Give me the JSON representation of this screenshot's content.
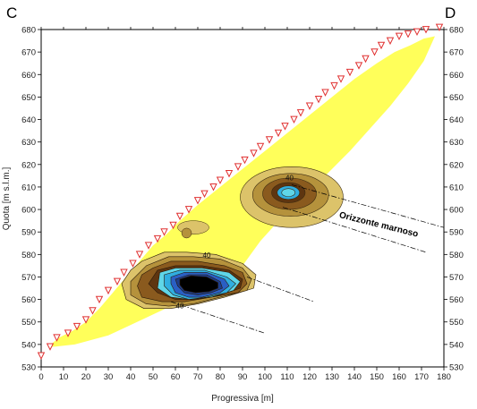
{
  "chart_data": {
    "type": "contour",
    "title": "",
    "xlabel": "Progressiva [m]",
    "ylabel": "Quota [m s.l.m.]",
    "xlim": [
      0,
      180
    ],
    "ylim": [
      530,
      680
    ],
    "x_ticks": [
      0,
      10,
      20,
      30,
      40,
      50,
      60,
      70,
      80,
      90,
      100,
      110,
      120,
      130,
      140,
      150,
      160,
      170,
      180
    ],
    "y_ticks": [
      530,
      540,
      550,
      560,
      570,
      580,
      590,
      600,
      610,
      620,
      630,
      640,
      650,
      660,
      670,
      680
    ],
    "section_labels": {
      "left": "C",
      "right": "D"
    },
    "contour_labels": [
      {
        "text": "40",
        "x": 111,
        "y": 613
      },
      {
        "text": "40",
        "x": 74,
        "y": 578.5
      },
      {
        "text": "40",
        "x": 62,
        "y": 556
      }
    ],
    "annotation": {
      "text": "Orizzonte marnoso",
      "x": 133,
      "y": 596.5
    },
    "electrode_positions": [
      [
        0,
        535
      ],
      [
        4,
        539
      ],
      [
        7,
        543
      ],
      [
        12,
        545
      ],
      [
        16,
        548
      ],
      [
        20,
        551
      ],
      [
        23,
        555
      ],
      [
        26,
        560
      ],
      [
        30,
        564
      ],
      [
        34,
        568
      ],
      [
        37,
        572
      ],
      [
        41,
        576
      ],
      [
        44,
        580
      ],
      [
        48,
        584
      ],
      [
        52,
        587
      ],
      [
        55,
        590
      ],
      [
        59,
        593
      ],
      [
        62,
        597
      ],
      [
        66,
        600
      ],
      [
        70,
        604
      ],
      [
        73,
        607
      ],
      [
        77,
        610
      ],
      [
        80,
        613
      ],
      [
        84,
        616
      ],
      [
        88,
        619
      ],
      [
        91,
        622
      ],
      [
        95,
        625
      ],
      [
        98,
        628
      ],
      [
        102,
        631
      ],
      [
        106,
        634
      ],
      [
        109,
        637
      ],
      [
        113,
        640
      ],
      [
        116,
        643
      ],
      [
        120,
        646
      ],
      [
        124,
        649
      ],
      [
        127,
        652
      ],
      [
        131,
        655
      ],
      [
        134,
        658
      ],
      [
        138,
        661
      ],
      [
        142,
        664
      ],
      [
        145,
        667
      ],
      [
        149,
        670
      ],
      [
        152,
        673
      ],
      [
        156,
        675
      ],
      [
        160,
        677
      ],
      [
        164,
        678
      ],
      [
        168,
        679
      ],
      [
        172,
        680
      ],
      [
        178,
        681
      ]
    ],
    "colors": {
      "background_fill": "#ffff5a",
      "tan": "#dcc36a",
      "light_brown": "#b5923c",
      "brown": "#8a5a1e",
      "dark_brown": "#5e3510",
      "cyan_light": "#5fd6e8",
      "cyan": "#30aee0",
      "blue": "#2a5fc4",
      "dark_blue": "#1e3d8a",
      "core": "#000000",
      "electrode_marker": "#e03030"
    }
  }
}
